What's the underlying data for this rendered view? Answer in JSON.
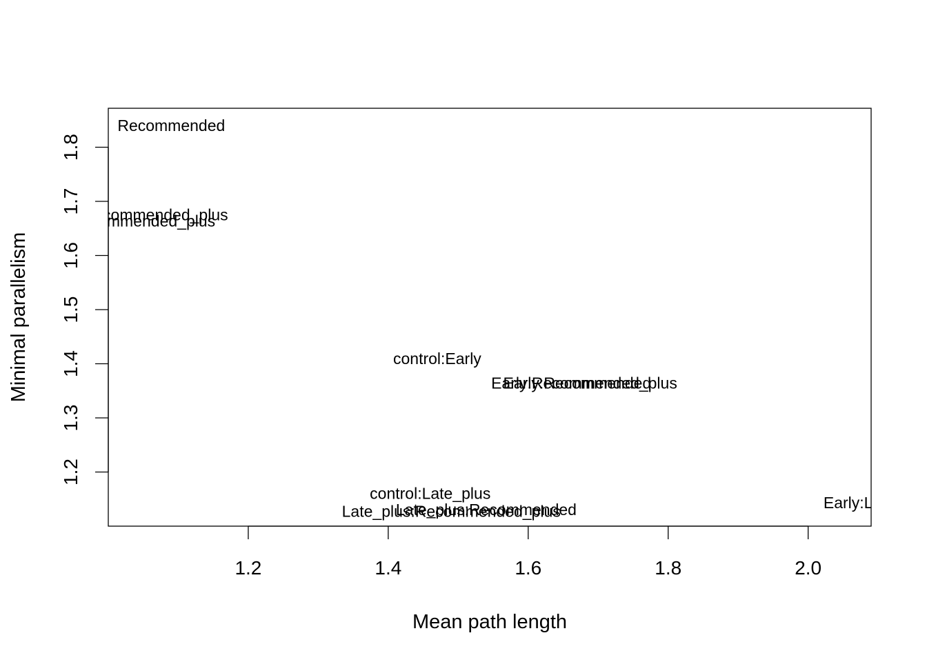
{
  "chart_data": {
    "type": "scatter",
    "title": "",
    "xlabel": "Mean path length",
    "ylabel": "Minimal parallelism",
    "xlim": [
      1.0,
      2.09
    ],
    "ylim": [
      1.1,
      1.872
    ],
    "xticks": [
      "1.2",
      "1.4",
      "1.6",
      "1.8",
      "2.0"
    ],
    "yticks": [
      "1.2",
      "1.3",
      "1.4",
      "1.5",
      "1.6",
      "1.7",
      "1.8"
    ],
    "grid": false,
    "legend": "none",
    "points": [
      {
        "label": "Recommended",
        "x": 1.09,
        "y": 1.838
      },
      {
        "label": "control:Recommended_plus",
        "x": 1.03,
        "y": 1.673
      },
      {
        "label": "Early:Recommended_plus",
        "x": 1.02,
        "y": 1.661
      },
      {
        "label": "control:Early",
        "x": 1.47,
        "y": 1.407
      },
      {
        "label": "Early:Recommended",
        "x": 1.67,
        "y": 1.362
      },
      {
        "label": "Early:Recommended_plus",
        "x": 1.68,
        "y": 1.362
      },
      {
        "label": "control:Late_plus",
        "x": 1.46,
        "y": 1.158
      },
      {
        "label": "Late_plus:Recommended",
        "x": 1.54,
        "y": 1.128
      },
      {
        "label": "Late_plus:Recommended_plus",
        "x": 1.49,
        "y": 1.125
      },
      {
        "label": "Early:Late_plus",
        "x": 2.1,
        "y": 1.141
      }
    ]
  }
}
